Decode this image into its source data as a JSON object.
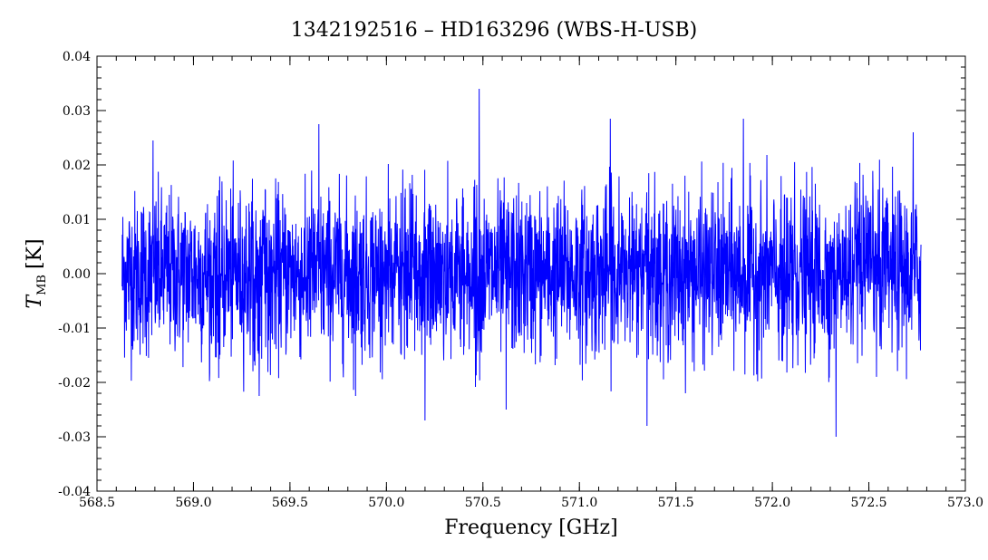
{
  "chart_data": {
    "type": "line",
    "title": "1342192516 – HD163296 (WBS-H-USB)",
    "xlabel": "Frequency [GHz]",
    "ylabel_main": "T",
    "ylabel_sub": "MB",
    "ylabel_unit": "[K]",
    "xlim": [
      568.5,
      573.0
    ],
    "ylim": [
      -0.04,
      0.04
    ],
    "x_ticks": [
      568.5,
      569.0,
      569.5,
      570.0,
      570.5,
      571.0,
      571.5,
      572.0,
      572.5,
      573.0
    ],
    "x_tick_labels": [
      "568.5",
      "569.0",
      "569.5",
      "570.0",
      "570.5",
      "571.0",
      "571.5",
      "572.0",
      "572.5",
      "573.0"
    ],
    "y_ticks": [
      -0.04,
      -0.03,
      -0.02,
      -0.01,
      0.0,
      0.01,
      0.02,
      0.03,
      0.04
    ],
    "y_tick_labels": [
      "-0.04",
      "-0.03",
      "-0.02",
      "-0.01",
      "0.00",
      "0.01",
      "0.02",
      "0.03",
      "0.04"
    ],
    "grid": false,
    "series": [
      {
        "color": "#0000ff",
        "x_range": [
          568.63,
          572.77
        ],
        "noise_rms": 0.0075,
        "spikes": [
          {
            "x": 570.48,
            "y": 0.034
          },
          {
            "x": 570.2,
            "y": -0.027
          },
          {
            "x": 571.35,
            "y": -0.028
          },
          {
            "x": 572.33,
            "y": -0.03
          },
          {
            "x": 571.85,
            "y": 0.0285
          },
          {
            "x": 571.16,
            "y": 0.0285
          },
          {
            "x": 572.73,
            "y": 0.026
          },
          {
            "x": 569.65,
            "y": 0.0275
          },
          {
            "x": 568.79,
            "y": 0.0245
          },
          {
            "x": 569.34,
            "y": -0.0225
          },
          {
            "x": 569.84,
            "y": -0.0225
          },
          {
            "x": 570.62,
            "y": -0.025
          }
        ]
      }
    ]
  }
}
